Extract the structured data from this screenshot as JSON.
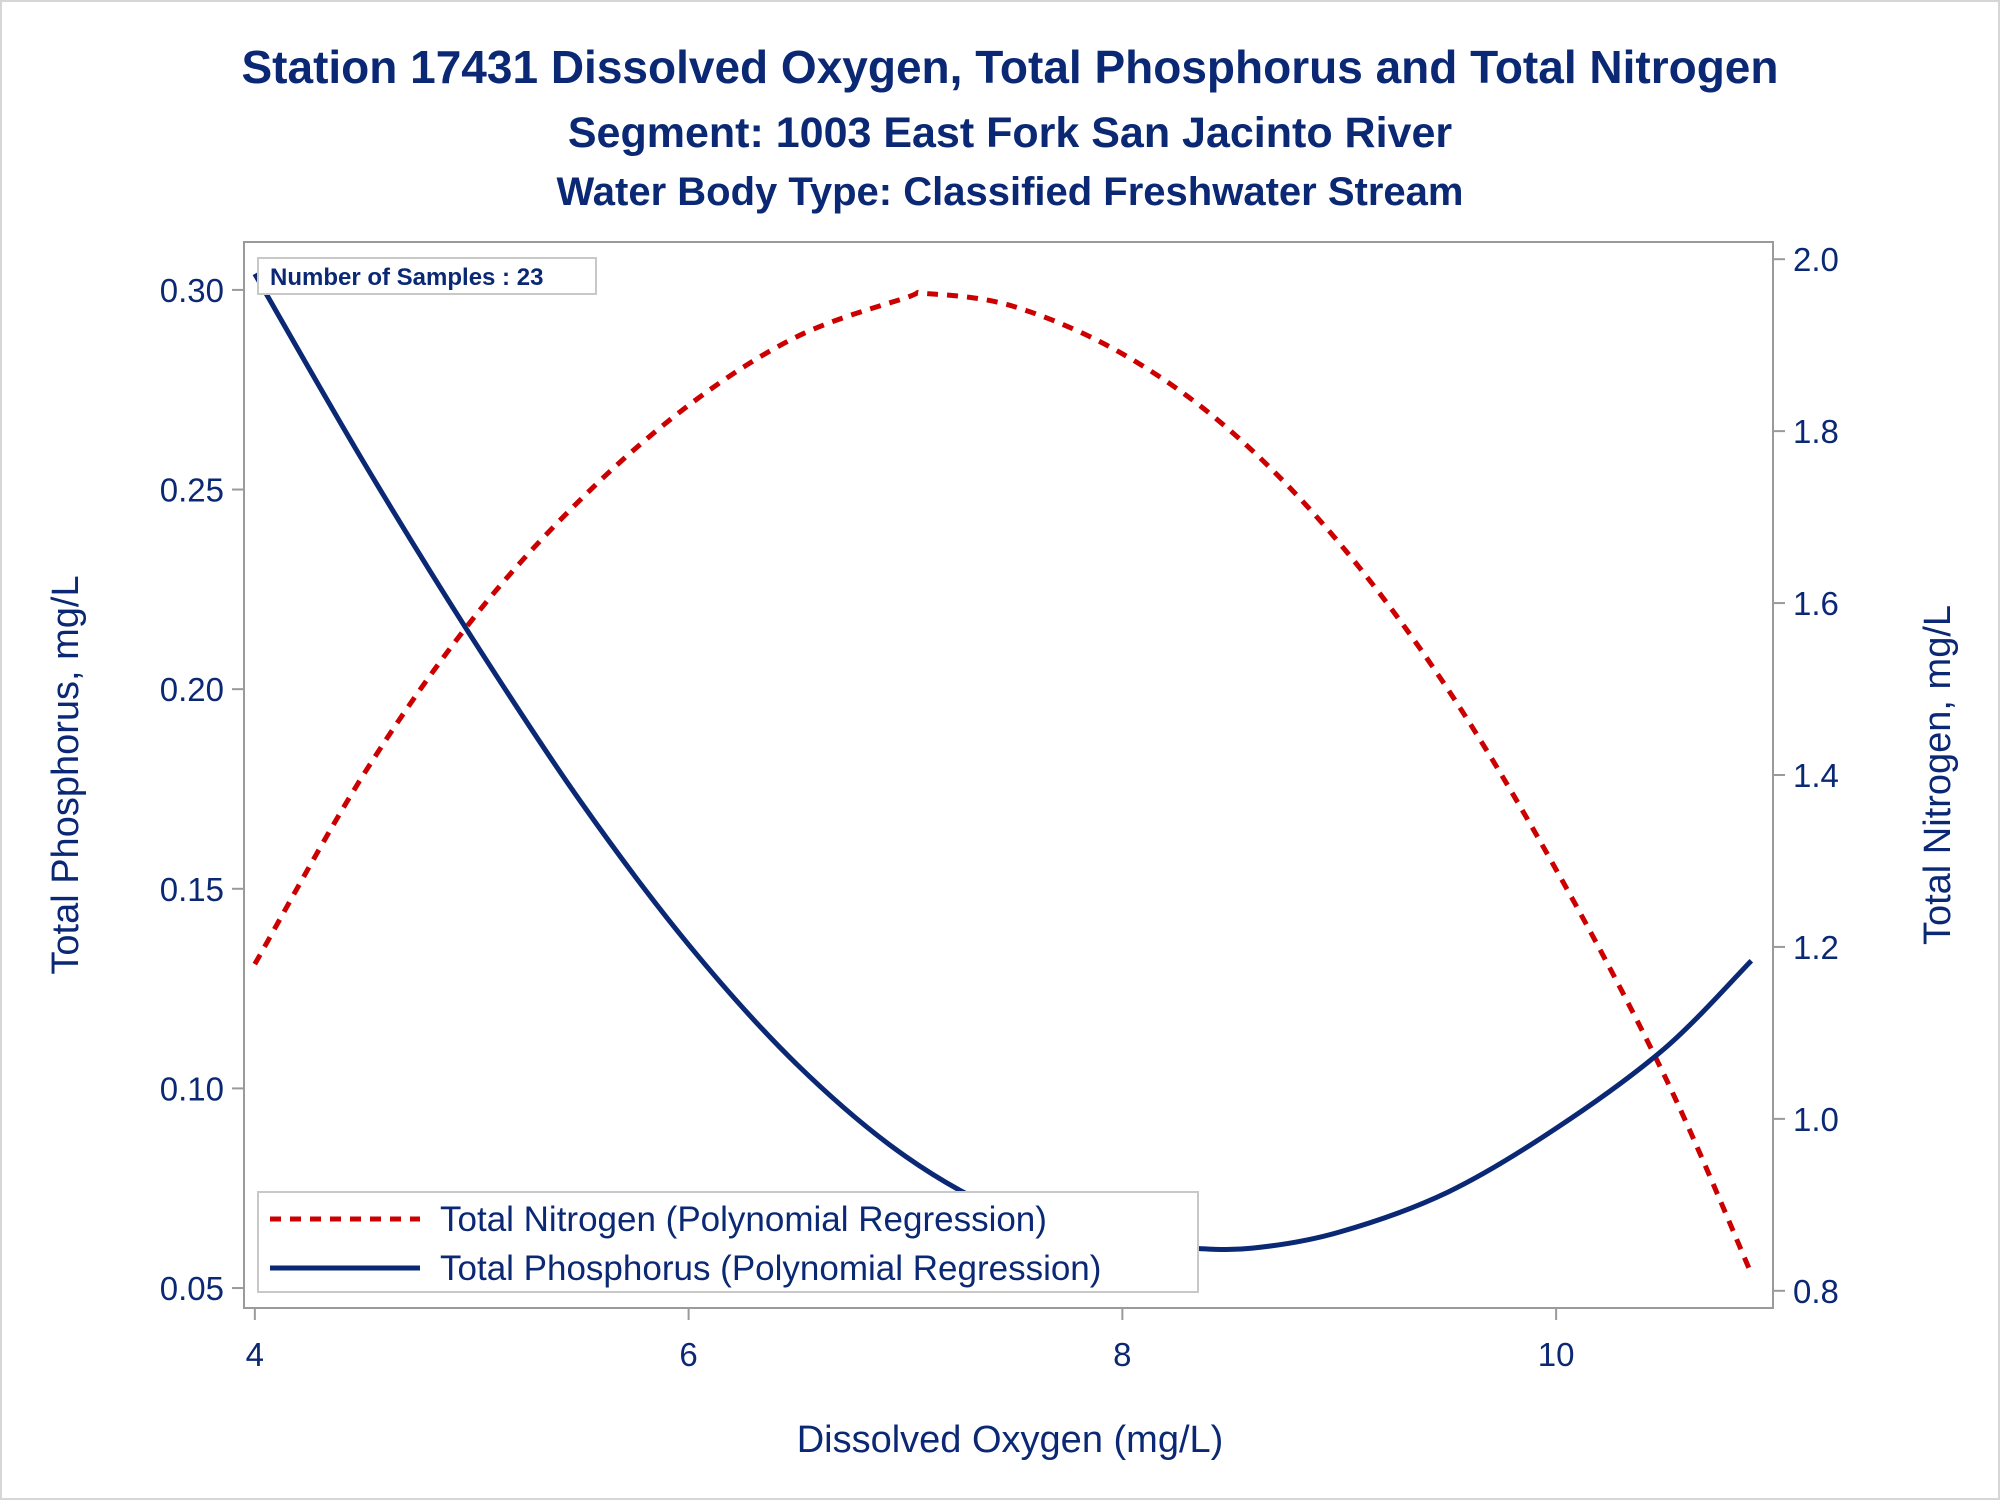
{
  "chart_data": {
    "type": "line",
    "title": "Station 17431  Dissolved Oxygen, Total Phosphorus and Total Nitrogen",
    "subtitle": "Segment: 1003  East Fork San Jacinto River",
    "subtitle2": "Water Body Type: Classified Freshwater Stream",
    "xlabel": "Dissolved Oxygen (mg/L)",
    "ylabel_left": "Total Phosphorus, mg/L",
    "ylabel_right": "Total Nitrogen, mg/L",
    "xlim": [
      3.95,
      11.0
    ],
    "ylim_left": [
      0.045,
      0.312
    ],
    "ylim_right": [
      0.78,
      2.02
    ],
    "x_ticks": [
      {
        "value": 4,
        "label": "4"
      },
      {
        "value": 6,
        "label": "6"
      },
      {
        "value": 8,
        "label": "8"
      },
      {
        "value": 10,
        "label": "10"
      }
    ],
    "y_left_ticks": [
      {
        "value": 0.05,
        "label": "0.05"
      },
      {
        "value": 0.1,
        "label": "0.10"
      },
      {
        "value": 0.15,
        "label": "0.15"
      },
      {
        "value": 0.2,
        "label": "0.20"
      },
      {
        "value": 0.25,
        "label": "0.25"
      },
      {
        "value": 0.3,
        "label": "0.30"
      }
    ],
    "y_right_ticks": [
      {
        "value": 0.8,
        "label": "0.8"
      },
      {
        "value": 1.0,
        "label": "1.0"
      },
      {
        "value": 1.2,
        "label": "1.2"
      },
      {
        "value": 1.4,
        "label": "1.4"
      },
      {
        "value": 1.6,
        "label": "1.6"
      },
      {
        "value": 1.8,
        "label": "1.8"
      },
      {
        "value": 2.0,
        "label": "2.0"
      }
    ],
    "annotation": "Number of Samples : 23",
    "legend_position": "bottom-left",
    "grid": false,
    "series": [
      {
        "name": "Total Nitrogen (Polynomial Regression)",
        "axis": "right",
        "color": "#cc0000",
        "style": "dashed",
        "x": [
          4.0,
          4.5,
          5.0,
          5.5,
          6.0,
          6.5,
          7.0,
          7.1,
          7.5,
          8.0,
          8.5,
          9.0,
          9.5,
          10.0,
          10.5,
          10.9
        ],
        "y": [
          1.18,
          1.4,
          1.58,
          1.72,
          1.83,
          1.91,
          1.955,
          1.96,
          1.945,
          1.89,
          1.8,
          1.67,
          1.5,
          1.29,
          1.05,
          0.82
        ]
      },
      {
        "name": "Total Phosphorus (Polynomial Regression)",
        "axis": "left",
        "color": "#0b2875",
        "style": "solid",
        "x": [
          4.0,
          4.5,
          5.0,
          5.5,
          6.0,
          6.5,
          7.0,
          7.5,
          8.0,
          8.3,
          8.6,
          9.0,
          9.5,
          10.0,
          10.5,
          10.9
        ],
        "y": [
          0.304,
          0.257,
          0.213,
          0.172,
          0.136,
          0.106,
          0.083,
          0.068,
          0.061,
          0.06,
          0.06,
          0.064,
          0.074,
          0.09,
          0.11,
          0.132
        ]
      }
    ]
  }
}
